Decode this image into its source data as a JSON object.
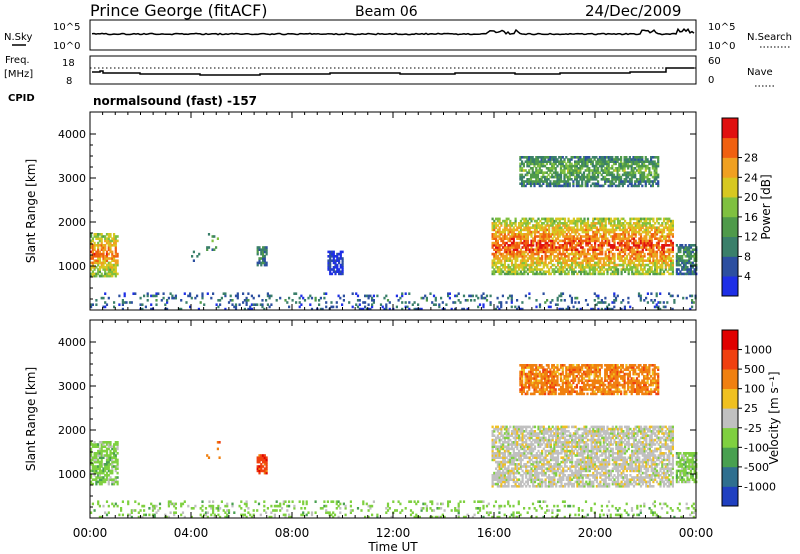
{
  "header": {
    "station": "Prince George (fitACF)",
    "beam": "Beam 06",
    "date": "24/Dec/2009"
  },
  "status_panels": {
    "nsky_label": "N.Sky",
    "nsearch_label": "N.Search",
    "freq_label_line1": "Freq.",
    "freq_label_line2": "[MHz]",
    "nave_label": "Nave",
    "cpid_label": "CPID",
    "cpid_text": "normalsound (fast) -157",
    "noise_ticks": [
      "10^5",
      "10^0"
    ],
    "freq_ticks": [
      "18",
      "8"
    ],
    "nave_ticks": [
      "60",
      "0"
    ]
  },
  "chart_data": [
    {
      "type": "heatmap",
      "name": "power",
      "ylabel": "Slant Range [km]",
      "xlabel": "Time UT",
      "ylim": [
        0,
        4500
      ],
      "xlim_hours": [
        0,
        24
      ],
      "x_tick_labels": [
        "00:00",
        "04:00",
        "08:00",
        "12:00",
        "16:00",
        "20:00",
        "00:00"
      ],
      "y_tick_labels": [
        "1000",
        "2000",
        "3000",
        "4000"
      ],
      "colorbar": {
        "label": "Power [dB]",
        "tick_labels": [
          "4",
          "8",
          "12",
          "16",
          "20",
          "24",
          "28"
        ],
        "colors": [
          "#1e2fe6",
          "#2c4fa0",
          "#3a7f6a",
          "#4f9a4a",
          "#7fc040",
          "#d7c820",
          "#f0a020",
          "#f06010",
          "#e01010"
        ]
      },
      "regions": [
        {
          "t": [
            0.0,
            1.1
          ],
          "r": [
            750,
            1750
          ],
          "level": 0.82
        },
        {
          "t": [
            4.6,
            5.1
          ],
          "r": [
            1350,
            1750
          ],
          "level": 0.45
        },
        {
          "t": [
            4.0,
            4.4
          ],
          "r": [
            1100,
            1350
          ],
          "level": 0.4
        },
        {
          "t": [
            6.6,
            7.0
          ],
          "r": [
            1000,
            1450
          ],
          "level": 0.35
        },
        {
          "t": [
            9.4,
            10.0
          ],
          "r": [
            800,
            1350
          ],
          "level": 0.1
        },
        {
          "t": [
            15.9,
            23.1
          ],
          "r": [
            800,
            2100
          ],
          "level": 0.88
        },
        {
          "t": [
            17.0,
            22.5
          ],
          "r": [
            2800,
            3500
          ],
          "level": 0.45
        },
        {
          "t": [
            23.2,
            24.0
          ],
          "r": [
            800,
            1500
          ],
          "level": 0.35
        },
        {
          "t": [
            0.0,
            24.0
          ],
          "r": [
            0,
            400
          ],
          "level": 0.25
        }
      ]
    },
    {
      "type": "heatmap",
      "name": "velocity",
      "ylabel": "Slant Range [km]",
      "xlabel": "Time UT",
      "ylim": [
        0,
        4500
      ],
      "xlim_hours": [
        0,
        24
      ],
      "x_tick_labels": [
        "00:00",
        "04:00",
        "08:00",
        "12:00",
        "16:00",
        "20:00",
        "00:00"
      ],
      "y_tick_labels": [
        "1000",
        "2000",
        "3000",
        "4000"
      ],
      "colorbar": {
        "label": "Velocity [m s⁻¹]",
        "tick_labels": [
          "1000",
          "500",
          "100",
          "25",
          "-25",
          "-100",
          "-500",
          "-1000"
        ],
        "colors": [
          "#2040c0",
          "#2f6f8f",
          "#48a050",
          "#7fd040",
          "#c0c0c0",
          "#f0c020",
          "#f08010",
          "#f04010",
          "#e00000"
        ]
      },
      "regions": [
        {
          "t": [
            0.0,
            1.1
          ],
          "r": [
            750,
            1750
          ],
          "palette_index": 3
        },
        {
          "t": [
            4.6,
            5.1
          ],
          "r": [
            1350,
            1750
          ],
          "palette_index": 6
        },
        {
          "t": [
            6.6,
            7.0
          ],
          "r": [
            1000,
            1450
          ],
          "palette_index": 7
        },
        {
          "t": [
            15.9,
            23.1
          ],
          "r": [
            700,
            2100
          ],
          "palette_index": 4
        },
        {
          "t": [
            17.0,
            22.5
          ],
          "r": [
            2800,
            3500
          ],
          "palette_index": 6
        },
        {
          "t": [
            23.2,
            24.0
          ],
          "r": [
            800,
            1500
          ],
          "palette_index": 3
        },
        {
          "t": [
            0.0,
            24.0
          ],
          "r": [
            0,
            400
          ],
          "palette_index": 3
        }
      ]
    }
  ],
  "colors": {
    "axis": "#000000",
    "background": "#ffffff"
  }
}
